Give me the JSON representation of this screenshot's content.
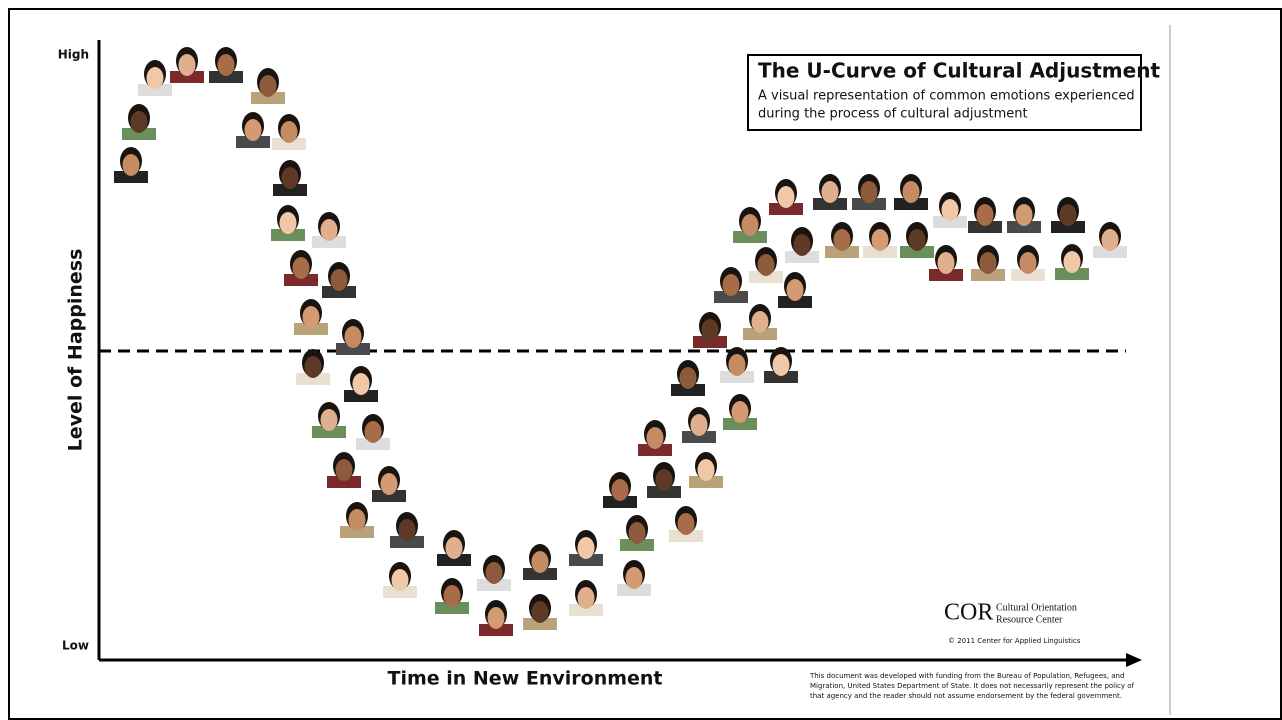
{
  "diagram": {
    "y_axis": {
      "label": "Level of Happiness",
      "high": "High",
      "low": "Low"
    },
    "x_axis": {
      "label": "Time in New Environment"
    },
    "title": "The U-Curve of Cultural Adjustment",
    "subtitle_lines": [
      "A visual representation of common emotions experienced",
      "during the process of cultural adjustment"
    ],
    "logo": {
      "mark": "COR",
      "lines": [
        "Cultural Orientation",
        "Resource Center"
      ],
      "copyright": "© 2011 Center for Applied Linguistics"
    },
    "disclaimer_lines": [
      "This document was developed with funding from the Bureau of Population, Refugees, and",
      "Migration, United States Department of State. It does not necessarily represent the policy of",
      "that agency and the reader should not assume endorsement by the federal government."
    ]
  }
}
